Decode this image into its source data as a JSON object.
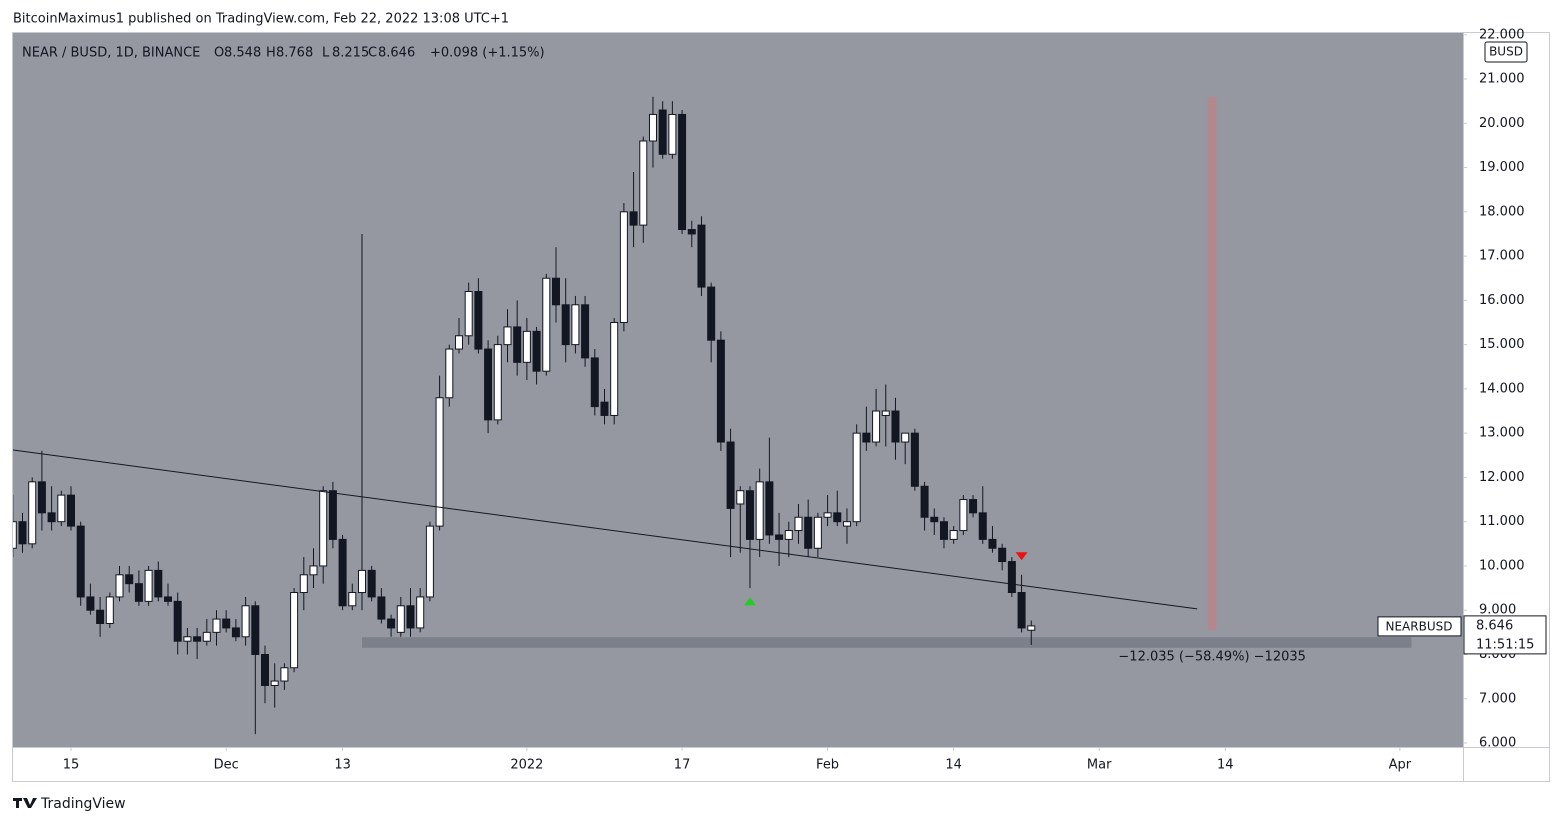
{
  "header": {
    "publisher": "BitcoinMaximus1 published on TradingView.com, Feb 22, 2022 13:08 UTC+1"
  },
  "footer": {
    "brand": "TradingView"
  },
  "chart_data": {
    "type": "candlestick",
    "symbol": "NEAR / BUSD, 1D, BINANCE",
    "ohlc_prefixes": [
      "O",
      "H",
      "L",
      "C"
    ],
    "change": "+0.098 (+1.15%)",
    "currency": "BUSD",
    "ticker": "NEARBUSD",
    "countdown": "11:51:15",
    "up_color": "#ffffff",
    "down_color": "#131722",
    "background": "#9598a1",
    "x": [
      -6,
      -5,
      -4,
      -3,
      -2,
      -1,
      0,
      1,
      2,
      3,
      4,
      5,
      6,
      7,
      8,
      9,
      10,
      11,
      12,
      13,
      14,
      15,
      16,
      17,
      18,
      19,
      20,
      21,
      22,
      23,
      24,
      25,
      26,
      27,
      28,
      29,
      30,
      31,
      32,
      33,
      34,
      35,
      36,
      37,
      38,
      39,
      40,
      41,
      42,
      43,
      44,
      45,
      46,
      47,
      48,
      49,
      50,
      51,
      52,
      53,
      54,
      55,
      56,
      57,
      58,
      59,
      60,
      61,
      62,
      63,
      64,
      65,
      66,
      67,
      68,
      69,
      70,
      71,
      72,
      73,
      74,
      75,
      76,
      77,
      78,
      79,
      80,
      81,
      82,
      83,
      84,
      85,
      86,
      87,
      88,
      89,
      90,
      91,
      92,
      93,
      94,
      95,
      96,
      97,
      98,
      99
    ],
    "open": [
      10.4,
      11.0,
      10.5,
      11.9,
      11.2,
      11.0,
      11.6,
      10.9,
      9.3,
      9.0,
      8.7,
      9.3,
      9.8,
      9.6,
      9.2,
      9.9,
      9.3,
      9.2,
      8.3,
      8.4,
      8.3,
      8.5,
      8.8,
      8.6,
      8.4,
      9.1,
      8.0,
      7.3,
      7.4,
      7.7,
      9.4,
      9.8,
      10.0,
      11.7,
      10.6,
      9.1,
      9.4,
      9.9,
      9.3,
      8.8,
      8.5,
      9.1,
      8.6,
      9.3,
      10.9,
      13.8,
      14.9,
      15.2,
      16.2,
      14.9,
      13.3,
      15.0,
      15.4,
      14.6,
      15.3,
      14.4,
      16.5,
      15.9,
      15.0,
      15.9,
      14.7,
      13.7,
      13.4,
      15.5,
      18.0,
      17.7,
      19.6,
      20.3,
      19.3,
      20.2,
      17.6,
      17.7,
      16.3,
      15.1,
      12.8,
      11.4,
      11.7,
      10.6,
      11.9,
      10.7,
      10.6,
      10.8,
      11.1,
      10.4,
      11.1,
      11.2,
      10.9,
      11.0,
      13.0,
      12.8,
      13.4,
      13.5,
      12.8,
      13.0,
      11.8,
      11.1,
      11.0,
      10.6,
      10.8,
      11.5,
      11.2,
      10.6,
      10.4,
      10.1,
      9.4,
      8.548
    ],
    "high": [
      11.6,
      11.2,
      12.0,
      12.6,
      11.8,
      11.7,
      11.8,
      11.0,
      9.6,
      9.3,
      9.4,
      10.0,
      10.0,
      9.9,
      10.0,
      10.1,
      9.6,
      9.4,
      8.6,
      8.6,
      8.8,
      9.0,
      9.0,
      8.8,
      9.3,
      9.2,
      8.2,
      7.8,
      7.8,
      9.5,
      10.2,
      10.4,
      11.8,
      11.9,
      10.7,
      9.6,
      17.5,
      10.0,
      9.5,
      8.9,
      9.3,
      9.5,
      9.5,
      11.0,
      14.3,
      15.0,
      15.6,
      16.4,
      16.5,
      15.1,
      15.2,
      15.8,
      16.0,
      15.6,
      15.4,
      16.6,
      17.2,
      16.5,
      16.1,
      16.1,
      14.9,
      14.0,
      15.6,
      18.2,
      18.9,
      19.7,
      20.6,
      20.5,
      20.5,
      20.3,
      17.8,
      17.9,
      16.4,
      15.3,
      13.1,
      11.8,
      11.8,
      12.2,
      12.9,
      11.2,
      11.0,
      11.4,
      11.5,
      11.2,
      11.6,
      11.7,
      11.3,
      13.2,
      13.6,
      14.0,
      14.1,
      13.8,
      13.0,
      13.1,
      11.9,
      11.3,
      11.1,
      10.9,
      11.6,
      11.6,
      11.8,
      10.9,
      10.5,
      10.2,
      9.8,
      8.768
    ],
    "low": [
      10.2,
      10.3,
      10.4,
      10.8,
      10.8,
      10.9,
      10.8,
      9.1,
      8.9,
      8.4,
      8.6,
      9.2,
      9.4,
      9.1,
      9.1,
      9.2,
      9.1,
      8.0,
      8.0,
      7.9,
      8.2,
      8.2,
      8.5,
      8.3,
      8.2,
      6.2,
      6.9,
      6.8,
      7.2,
      7.6,
      9.0,
      9.5,
      9.6,
      10.4,
      9.0,
      9.0,
      9.0,
      9.2,
      8.7,
      8.4,
      8.4,
      8.4,
      8.5,
      9.2,
      10.8,
      13.6,
      14.8,
      15.0,
      14.8,
      13.0,
      13.2,
      14.6,
      14.3,
      14.2,
      14.1,
      14.3,
      15.5,
      14.6,
      14.8,
      14.5,
      13.4,
      13.2,
      13.2,
      15.3,
      17.2,
      17.3,
      19.0,
      19.2,
      19.2,
      17.5,
      17.2,
      16.1,
      14.6,
      12.6,
      10.2,
      10.3,
      9.5,
      10.2,
      10.5,
      10.0,
      10.2,
      10.5,
      10.2,
      10.2,
      10.9,
      10.9,
      10.5,
      10.9,
      12.6,
      12.7,
      12.7,
      12.4,
      12.3,
      11.7,
      10.8,
      10.7,
      10.4,
      10.5,
      10.7,
      11.1,
      10.5,
      10.3,
      9.9,
      9.3,
      8.5,
      8.215
    ],
    "close": [
      11.0,
      10.5,
      11.9,
      11.2,
      11.0,
      11.6,
      10.9,
      9.3,
      9.0,
      8.7,
      9.3,
      9.8,
      9.6,
      9.2,
      9.9,
      9.3,
      9.2,
      8.3,
      8.4,
      8.3,
      8.5,
      8.8,
      8.6,
      8.4,
      9.1,
      8.0,
      7.3,
      7.4,
      7.7,
      9.4,
      9.8,
      10.0,
      11.7,
      10.6,
      9.1,
      9.4,
      9.9,
      9.3,
      8.8,
      8.6,
      9.1,
      8.6,
      9.3,
      10.9,
      13.8,
      14.9,
      15.2,
      16.2,
      14.9,
      13.3,
      15.0,
      15.4,
      14.6,
      15.3,
      14.4,
      16.5,
      15.9,
      15.0,
      15.9,
      14.7,
      13.6,
      13.4,
      15.5,
      18.0,
      17.7,
      19.6,
      20.2,
      19.3,
      20.2,
      17.6,
      17.5,
      16.3,
      15.1,
      12.8,
      11.3,
      11.7,
      10.6,
      11.9,
      10.7,
      10.6,
      10.8,
      11.1,
      10.4,
      11.1,
      11.2,
      11.0,
      11.0,
      13.0,
      12.8,
      13.5,
      13.5,
      12.8,
      13.0,
      11.8,
      11.1,
      11.0,
      10.6,
      10.8,
      11.5,
      11.2,
      10.6,
      10.4,
      10.1,
      9.4,
      8.6,
      8.646
    ],
    "xlim": [
      -5.98,
      143.51
    ],
    "xticks": [
      {
        "value": 0,
        "label": "15"
      },
      {
        "value": 16,
        "label": "Dec"
      },
      {
        "value": 28,
        "label": "13"
      },
      {
        "value": 47,
        "label": "2022"
      },
      {
        "value": 63,
        "label": "17"
      },
      {
        "value": 78,
        "label": "Feb"
      },
      {
        "value": 91,
        "label": "14"
      },
      {
        "value": 106,
        "label": "Mar"
      },
      {
        "value": 119,
        "label": "14"
      },
      {
        "value": 137,
        "label": "Apr"
      }
    ],
    "ylim": [
      5.91,
      22.04
    ],
    "yticks": [
      {
        "value": 6,
        "label": "6.000"
      },
      {
        "value": 7,
        "label": "7.000"
      },
      {
        "value": 8,
        "label": "8.000"
      },
      {
        "value": 9,
        "label": "9.000"
      },
      {
        "value": 10,
        "label": "10.000"
      },
      {
        "value": 11,
        "label": "11.000"
      },
      {
        "value": 12,
        "label": "12.000"
      },
      {
        "value": 13,
        "label": "13.000"
      },
      {
        "value": 14,
        "label": "14.000"
      },
      {
        "value": 15,
        "label": "15.000"
      },
      {
        "value": 16,
        "label": "16.000"
      },
      {
        "value": 17,
        "label": "17.000"
      },
      {
        "value": 18,
        "label": "18.000"
      },
      {
        "value": 19,
        "label": "19.000"
      },
      {
        "value": 20,
        "label": "20.000"
      },
      {
        "value": 21,
        "label": "21.000"
      },
      {
        "value": 22,
        "label": "22.000"
      }
    ],
    "trendline": {
      "x": [
        -5.98,
        116.1
      ],
      "y": [
        12.62,
        9.03
      ],
      "color": "#131722"
    },
    "support_zone": {
      "x": [
        30,
        138.2
      ],
      "y": [
        8.15,
        8.39
      ],
      "color": "#787b86"
    },
    "measure": {
      "label": "−12.035 (−58.49%) −12035",
      "x": [
        117.2,
        118.1
      ],
      "y": [
        8.55,
        20.59
      ],
      "color": "#b5868a"
    },
    "markers": [
      {
        "shape": "up",
        "x": 70,
        "y": 9.2,
        "color": "#22cc22"
      },
      {
        "shape": "down",
        "x": 98,
        "y": 10.22,
        "color": "#ee1111"
      }
    ]
  }
}
